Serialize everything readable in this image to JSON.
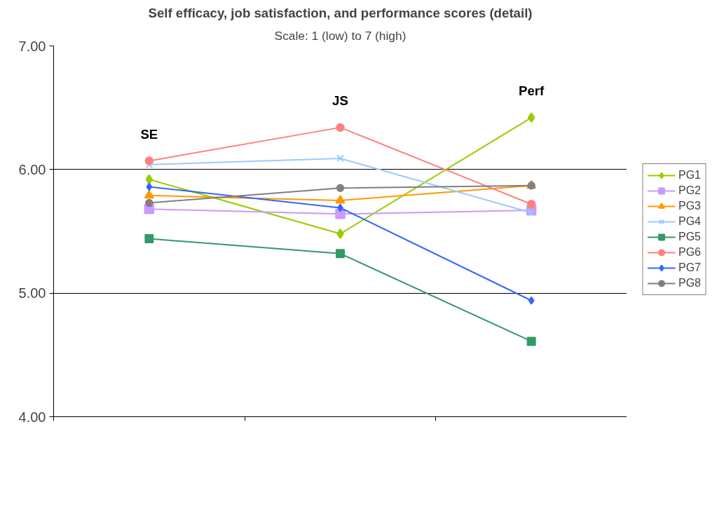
{
  "chart_data": {
    "type": "line",
    "title": "Self efficacy, job satisfaction, and performance scores (detail)",
    "subtitle": "Scale: 1 (low) to 7 (high)",
    "categories": [
      "SE",
      "JS",
      "Perf"
    ],
    "series": [
      {
        "name": "PG1",
        "color": "#99cc00",
        "marker": "diamond",
        "values": [
          5.92,
          5.48,
          6.42
        ]
      },
      {
        "name": "PG2",
        "color": "#cc99ff",
        "marker": "square",
        "values": [
          5.68,
          5.64,
          5.67
        ]
      },
      {
        "name": "PG3",
        "color": "#ff9900",
        "marker": "triangle",
        "values": [
          5.79,
          5.75,
          5.87
        ]
      },
      {
        "name": "PG4",
        "color": "#99ccff",
        "marker": "cross",
        "values": [
          6.04,
          6.09,
          5.65
        ]
      },
      {
        "name": "PG5",
        "color": "#339966",
        "marker": "square",
        "values": [
          5.44,
          5.32,
          4.61
        ]
      },
      {
        "name": "PG6",
        "color": "#ff8080",
        "marker": "circle",
        "values": [
          6.07,
          6.34,
          5.72
        ]
      },
      {
        "name": "PG7",
        "color": "#3366ff",
        "marker": "diamond",
        "values": [
          5.86,
          5.69,
          4.94
        ]
      },
      {
        "name": "PG8",
        "color": "#808080",
        "marker": "circle",
        "values": [
          5.73,
          5.85,
          5.87
        ]
      }
    ],
    "ylim": [
      4,
      7
    ],
    "yticks": [
      {
        "value": 4,
        "label": "4.00"
      },
      {
        "value": 5,
        "label": "5.00"
      },
      {
        "value": 6,
        "label": "6.00"
      },
      {
        "value": 7,
        "label": "7.00"
      }
    ],
    "grid": "y",
    "legend": "right",
    "tick_labels": "y",
    "line_style": "solid"
  }
}
